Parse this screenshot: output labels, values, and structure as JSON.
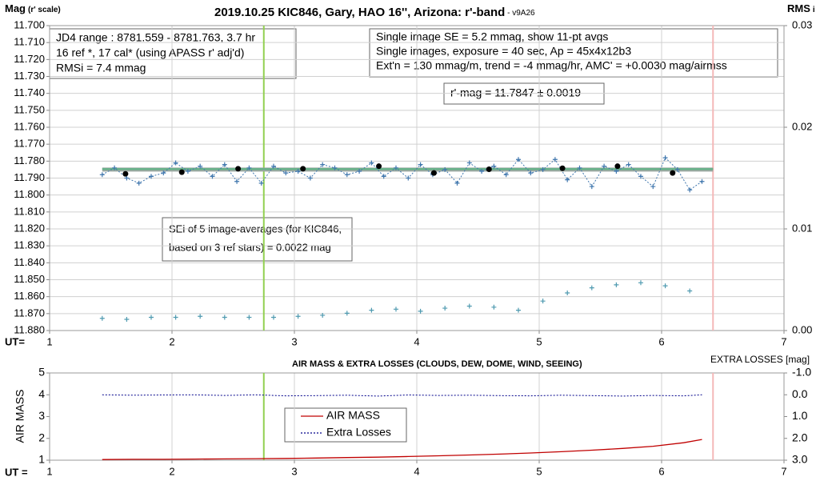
{
  "chart_data": [
    {
      "type": "line",
      "title": "2019.10.25 KIC846, Gary, HAO 16'', Arizona: r'-band",
      "subtitle": " - v9A26",
      "y_label": "Mag",
      "y_label_note": "(r' scale)",
      "y2_label": "RMS",
      "y2_label_note": "i",
      "x_label": "UT=",
      "annotations": [
        {
          "lines": [
            "JD4 range : 8781.559 - 8781.763,  3.7  hr",
            "16 ref *, 17 cal* (using APASS r' adj'd)",
            "RMSi = 7.4 mmag"
          ]
        },
        {
          "lines": [
            "Single image SE = 5.2 mmag, show  11-pt avgs",
            "Single images, exposure = 40 sec, Ap = 45x4x12b3",
            "Ext'n = 130 mmag/m, trend =  -4 mmag/hr, AMC' = +0.0030 mag/airmss"
          ]
        },
        {
          "lines": [
            "r'-mag = 11.7847 ± 0.0019"
          ]
        },
        {
          "lines": [
            "SEi of 5 image-averages (for KIC846,",
            "based on 3 ref stars) = 0.0022 mag"
          ]
        }
      ],
      "xlim": [
        1,
        7
      ],
      "xticks": [
        1,
        2,
        3,
        4,
        5,
        6,
        7
      ],
      "ylim": [
        11.88,
        11.7
      ],
      "yticks": [
        {
          "value": 11.7,
          "label": "11.700"
        },
        {
          "value": 11.71,
          "label": "11.710"
        },
        {
          "value": 11.72,
          "label": "11.720"
        },
        {
          "value": 11.73,
          "label": "11.730"
        },
        {
          "value": 11.74,
          "label": "11.740"
        },
        {
          "value": 11.75,
          "label": "11.750"
        },
        {
          "value": 11.76,
          "label": "11.760"
        },
        {
          "value": 11.77,
          "label": "11.770"
        },
        {
          "value": 11.78,
          "label": "11.780"
        },
        {
          "value": 11.79,
          "label": "11.790"
        },
        {
          "value": 11.8,
          "label": "11.800"
        },
        {
          "value": 11.81,
          "label": "11.810"
        },
        {
          "value": 11.82,
          "label": "11.820"
        },
        {
          "value": 11.83,
          "label": "11.830"
        },
        {
          "value": 11.84,
          "label": "11.840"
        },
        {
          "value": 11.85,
          "label": "11.850"
        },
        {
          "value": 11.86,
          "label": "11.860"
        },
        {
          "value": 11.87,
          "label": "11.870"
        },
        {
          "value": 11.88,
          "label": "11.880"
        }
      ],
      "y2lim": [
        0,
        0.03
      ],
      "y2ticks": [
        {
          "value": 0,
          "label": "0.00"
        },
        0.01,
        0.02,
        0.03
      ],
      "grid": "both",
      "vertical_lines": [
        {
          "x": 2.75,
          "color": "#92d050"
        },
        {
          "x": 6.42,
          "color": "#f4b8b8"
        }
      ],
      "series": [
        {
          "color": "#9aa8a0",
          "width": 5,
          "marker": "none",
          "x": [
            1.43,
            6.42
          ],
          "values": [
            11.785,
            11.785
          ]
        },
        {
          "color": "#5fb386",
          "width": 2,
          "marker": "none",
          "x": [
            1.43,
            6.42
          ],
          "values": [
            11.7847,
            11.7847
          ]
        },
        {
          "color": "#3f76ad",
          "dashed": true,
          "marker": "plus",
          "x": [
            1.43,
            1.53,
            1.63,
            1.73,
            1.83,
            1.93,
            2.03,
            2.13,
            2.23,
            2.33,
            2.43,
            2.53,
            2.63,
            2.73,
            2.83,
            2.93,
            3.03,
            3.13,
            3.23,
            3.33,
            3.43,
            3.53,
            3.63,
            3.73,
            3.83,
            3.93,
            4.03,
            4.13,
            4.23,
            4.33,
            4.43,
            4.53,
            4.63,
            4.73,
            4.83,
            4.93,
            5.03,
            5.13,
            5.23,
            5.33,
            5.43,
            5.53,
            5.63,
            5.73,
            5.83,
            5.93,
            6.03,
            6.13,
            6.23,
            6.33
          ],
          "values": [
            11.788,
            11.784,
            11.79,
            11.793,
            11.789,
            11.787,
            11.781,
            11.786,
            11.783,
            11.789,
            11.782,
            11.792,
            11.784,
            11.793,
            11.783,
            11.787,
            11.786,
            11.79,
            11.782,
            11.784,
            11.788,
            11.786,
            11.781,
            11.789,
            11.784,
            11.79,
            11.782,
            11.788,
            11.785,
            11.793,
            11.781,
            11.786,
            11.783,
            11.788,
            11.779,
            11.787,
            11.785,
            11.779,
            11.791,
            11.784,
            11.795,
            11.783,
            11.786,
            11.782,
            11.789,
            11.795,
            11.778,
            11.785,
            11.797,
            11.792
          ]
        },
        {
          "color": "#000000",
          "marker": "dot",
          "x": [
            1.62,
            2.08,
            2.54,
            3.07,
            3.69,
            4.14,
            4.59,
            5.19,
            5.64,
            6.09
          ],
          "values": [
            11.7875,
            11.7865,
            11.7845,
            11.7845,
            11.783,
            11.787,
            11.7848,
            11.7842,
            11.783,
            11.787
          ]
        },
        {
          "color": "#4f9ab0",
          "marker": "plus",
          "axis": "y2",
          "x": [
            1.43,
            1.63,
            1.83,
            2.03,
            2.23,
            2.43,
            2.63,
            2.83,
            3.03,
            3.23,
            3.43,
            3.63,
            3.83,
            4.03,
            4.23,
            4.43,
            4.63,
            4.83,
            5.03,
            5.23,
            5.43,
            5.63,
            5.83,
            6.03,
            6.23
          ],
          "values": [
            0.0012,
            0.0011,
            0.0013,
            0.0013,
            0.0014,
            0.0013,
            0.0013,
            0.0013,
            0.0014,
            0.0015,
            0.0017,
            0.002,
            0.0021,
            0.0019,
            0.0022,
            0.0024,
            0.0023,
            0.002,
            0.0029,
            0.0037,
            0.0042,
            0.0045,
            0.0047,
            0.0044,
            0.0039
          ]
        }
      ]
    },
    {
      "type": "line",
      "title": "AIR MASS & EXTRA LOSSES (CLOUDS, DEW, DOME, WIND, SEEING)",
      "y_label": "AIR MASS",
      "y2_label": "EXTRA LOSSES [mag]",
      "x_label": "UT =",
      "xlim": [
        1,
        7
      ],
      "xticks": [
        1,
        2,
        3,
        4,
        5,
        6,
        7
      ],
      "ylim": [
        1,
        5
      ],
      "yticks": [
        1,
        2,
        3,
        4,
        5
      ],
      "y2lim": [
        3,
        -1
      ],
      "y2ticks": [
        {
          "value": -1,
          "label": "-1.0"
        },
        {
          "value": 0,
          "label": "0.0"
        },
        {
          "value": 1,
          "label": "1.0"
        },
        {
          "value": 2,
          "label": "2.0"
        },
        {
          "value": 3,
          "label": "3.0"
        }
      ],
      "grid": "x",
      "vertical_lines": [
        {
          "x": 2.75,
          "color": "#92d050"
        },
        {
          "x": 6.42,
          "color": "#f4b8b8"
        }
      ],
      "series": [
        {
          "name": "AIR MASS",
          "color": "#c00000",
          "marker": "none",
          "x": [
            1.43,
            1.68,
            1.93,
            2.18,
            2.43,
            2.68,
            2.93,
            3.18,
            3.43,
            3.68,
            3.93,
            4.18,
            4.43,
            4.68,
            4.93,
            5.18,
            5.43,
            5.68,
            5.93,
            6.18,
            6.33
          ],
          "values": [
            1.03,
            1.04,
            1.04,
            1.05,
            1.06,
            1.07,
            1.08,
            1.1,
            1.12,
            1.14,
            1.17,
            1.2,
            1.24,
            1.28,
            1.33,
            1.39,
            1.46,
            1.54,
            1.64,
            1.8,
            1.95
          ]
        },
        {
          "name": "Extra Losses",
          "color": "#00008b",
          "dashed": true,
          "marker": "none",
          "axis": "y2",
          "x": [
            1.43,
            1.68,
            1.93,
            2.18,
            2.43,
            2.68,
            2.93,
            3.18,
            3.43,
            3.68,
            3.93,
            4.18,
            4.43,
            4.68,
            4.93,
            5.18,
            5.43,
            5.68,
            5.93,
            6.18,
            6.33
          ],
          "values": [
            0,
            0.02,
            0.01,
            0,
            0.03,
            0,
            0.05,
            0.04,
            0.02,
            0.06,
            0.01,
            0.03,
            0.02,
            0.04,
            0.05,
            0.02,
            0.04,
            0.06,
            0.03,
            0.05,
            0
          ]
        }
      ]
    }
  ]
}
